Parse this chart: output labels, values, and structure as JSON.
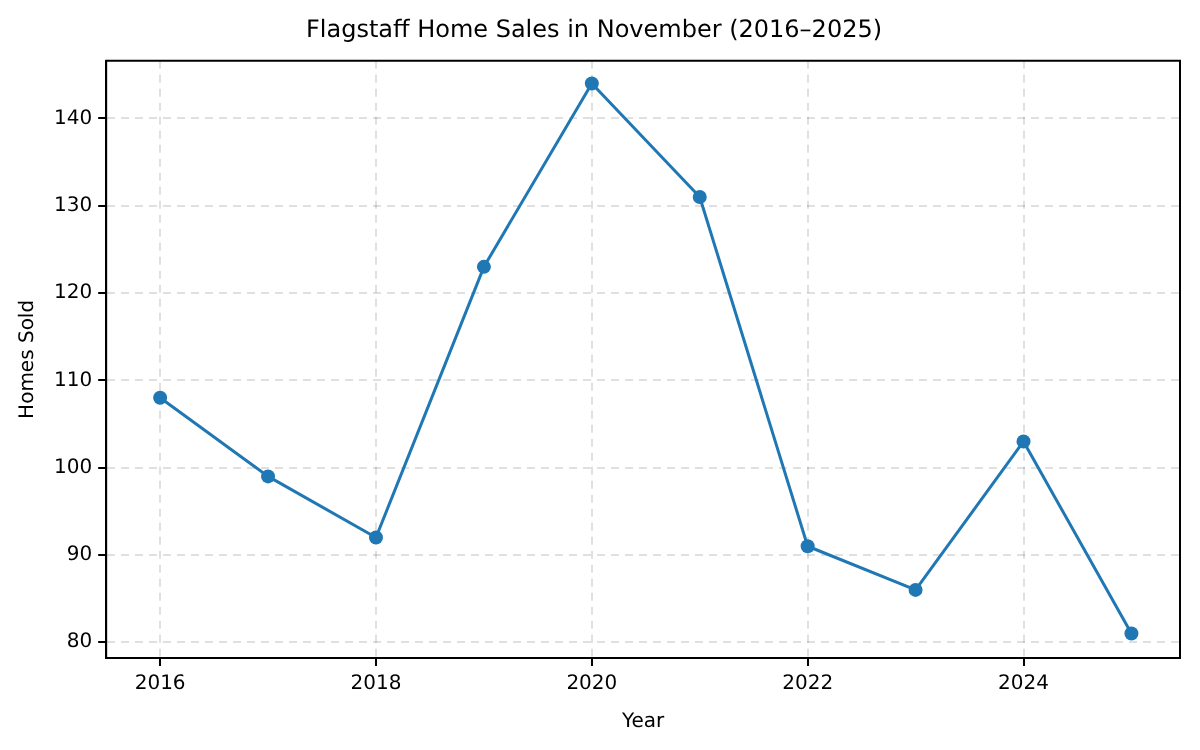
{
  "chart_data": {
    "type": "line",
    "title": "Flagstaff Home Sales in November (2016–2025)",
    "xlabel": "Year",
    "ylabel": "Homes Sold",
    "x": [
      2016,
      2017,
      2018,
      2019,
      2020,
      2021,
      2022,
      2023,
      2024,
      2025
    ],
    "series": [
      {
        "color": "#1f77b4",
        "values": [
          108,
          99,
          92,
          123,
          144,
          131,
          91,
          86,
          103,
          81
        ]
      }
    ],
    "xlim": [
      2015.5,
      2025.45
    ],
    "xticks": [
      2016,
      2018,
      2020,
      2022,
      2024
    ],
    "ylim": [
      78.2,
      146.6
    ],
    "yticks": [
      80,
      90,
      100,
      110,
      120,
      130,
      140
    ],
    "grid": true,
    "marker": "circle",
    "line_style": "solid"
  }
}
